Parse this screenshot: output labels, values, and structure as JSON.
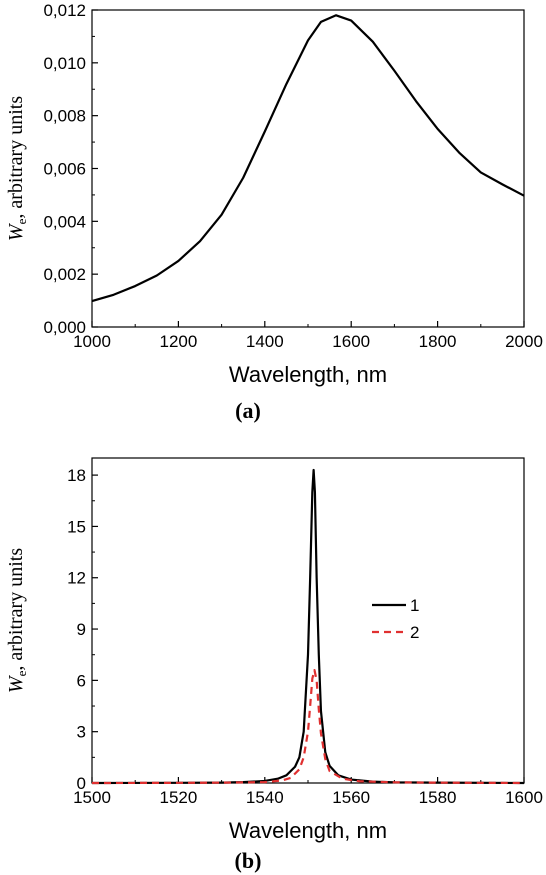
{
  "chart_data": [
    {
      "type": "line",
      "panel_label": "(a)",
      "xlabel": "Wavelength, nm",
      "ylabel_symbol": "W",
      "ylabel_sub": "e",
      "ylabel_rest": ", arbitrary units",
      "xlim": [
        1000,
        2000
      ],
      "ylim": [
        0,
        0.012
      ],
      "xticks": [
        1000,
        1200,
        1400,
        1600,
        1800,
        2000
      ],
      "xtick_labels": [
        "1000",
        "1200",
        "1400",
        "1600",
        "1800",
        "2000"
      ],
      "yticks": [
        0,
        0.002,
        0.004,
        0.006,
        0.008,
        0.01,
        0.012
      ],
      "ytick_labels": [
        "0,000",
        "0,002",
        "0,004",
        "0,006",
        "0,008",
        "0,010",
        "0,012"
      ],
      "grid": false,
      "series": [
        {
          "color": "#000000",
          "style": "solid",
          "x": [
            1000,
            1050,
            1100,
            1150,
            1200,
            1250,
            1300,
            1350,
            1400,
            1450,
            1500,
            1530,
            1565,
            1600,
            1650,
            1700,
            1750,
            1800,
            1850,
            1900,
            1950,
            2000
          ],
          "y": [
            0.00098,
            0.00122,
            0.00155,
            0.00195,
            0.0025,
            0.00325,
            0.00425,
            0.00565,
            0.0074,
            0.0092,
            0.01085,
            0.01155,
            0.0118,
            0.0116,
            0.0108,
            0.0097,
            0.00855,
            0.0075,
            0.0066,
            0.00585,
            0.0054,
            0.00497
          ]
        }
      ]
    },
    {
      "type": "line",
      "panel_label": "(b)",
      "xlabel": "Wavelength, nm",
      "ylabel_symbol": "W",
      "ylabel_sub": "e",
      "ylabel_rest": ", arbitrary units",
      "xlim": [
        1500,
        1600
      ],
      "ylim": [
        0,
        19
      ],
      "xticks": [
        1500,
        1520,
        1540,
        1560,
        1580,
        1600
      ],
      "xtick_labels": [
        "1500",
        "1520",
        "1540",
        "1560",
        "1580",
        "1600"
      ],
      "yticks": [
        0,
        3,
        6,
        9,
        12,
        15,
        18
      ],
      "ytick_labels": [
        "0",
        "3",
        "6",
        "9",
        "12",
        "15",
        "18"
      ],
      "grid": false,
      "legend_position": "center-right",
      "series": [
        {
          "name": "1",
          "color": "#000000",
          "style": "solid",
          "x": [
            1500,
            1520,
            1530,
            1535,
            1540,
            1543,
            1545,
            1547,
            1548,
            1549,
            1550,
            1550.5,
            1551,
            1551.3,
            1551.6,
            1552,
            1552.5,
            1553,
            1554,
            1555,
            1557,
            1560,
            1565,
            1570,
            1580,
            1600
          ],
          "y": [
            0.0,
            0.01,
            0.02,
            0.05,
            0.12,
            0.25,
            0.45,
            0.95,
            1.5,
            3.0,
            7.5,
            12.0,
            17.0,
            18.3,
            17.0,
            12.0,
            7.5,
            4.2,
            1.8,
            1.0,
            0.45,
            0.2,
            0.08,
            0.04,
            0.02,
            0.0
          ]
        },
        {
          "name": "2",
          "color": "#e03030",
          "style": "dashed",
          "x": [
            1500,
            1520,
            1530,
            1540,
            1544,
            1546,
            1548,
            1549,
            1550,
            1550.5,
            1551,
            1551.5,
            1552,
            1552.5,
            1553,
            1554,
            1555,
            1558,
            1562,
            1570,
            1580,
            1600
          ],
          "y": [
            0.0,
            0.01,
            0.02,
            0.05,
            0.15,
            0.3,
            0.8,
            1.5,
            3.0,
            4.5,
            6.1,
            6.6,
            6.0,
            4.3,
            2.9,
            1.4,
            0.7,
            0.25,
            0.1,
            0.04,
            0.02,
            0.0
          ]
        }
      ]
    }
  ]
}
